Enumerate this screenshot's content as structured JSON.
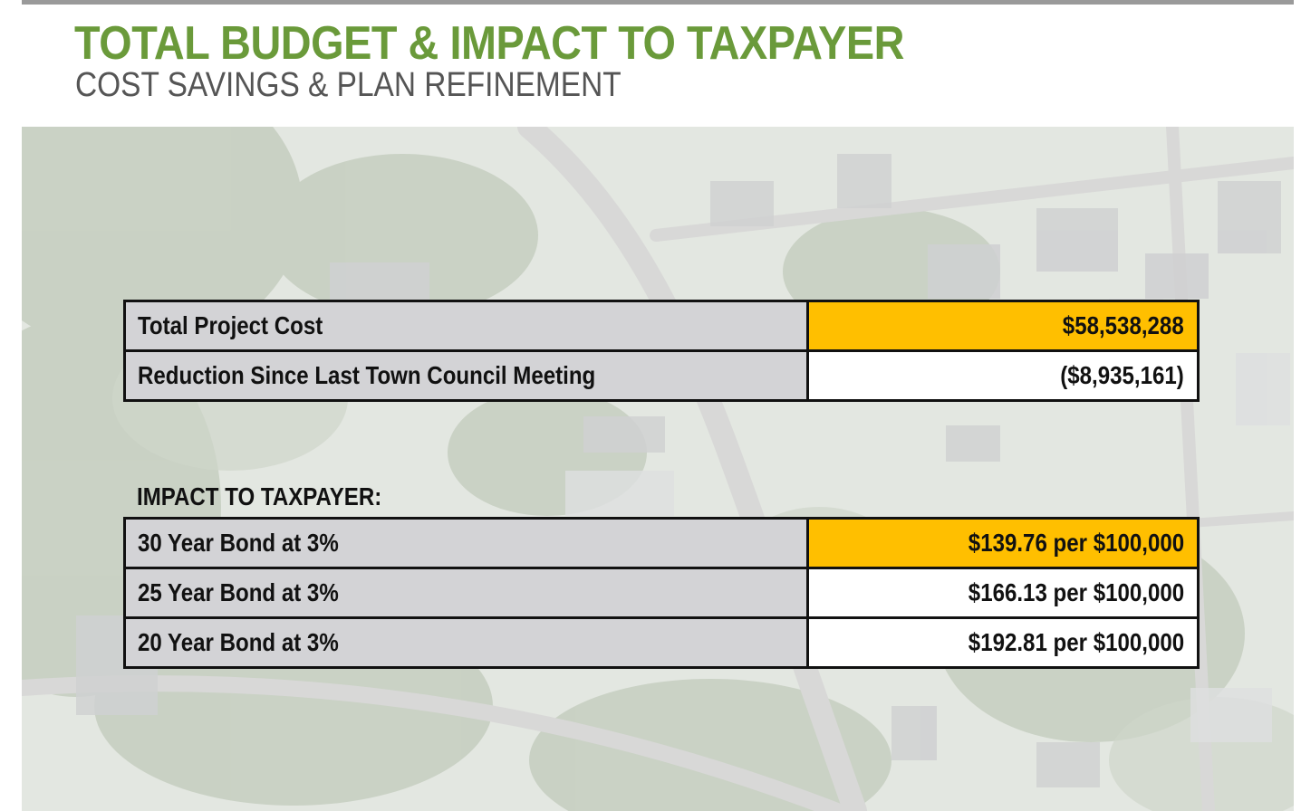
{
  "header": {
    "title": "TOTAL BUDGET & IMPACT TO TAXPAYER",
    "subtitle": "COST SAVINGS & PLAN REFINEMENT"
  },
  "colors": {
    "title_green": "#6a9a3a",
    "subtitle_gray": "#555555",
    "label_cell_gray": "#d3d3d6",
    "highlight_yellow": "#ffbf00",
    "border": "#111111"
  },
  "budget_table": {
    "rows": [
      {
        "label": "Total Project Cost",
        "value": "$58,538,288",
        "highlight": true
      },
      {
        "label": "Reduction Since Last Town Council Meeting",
        "value": "($8,935,161)",
        "highlight": false
      }
    ]
  },
  "impact": {
    "heading": "IMPACT TO TAXPAYER:",
    "rows": [
      {
        "label": "30 Year Bond at 3%",
        "value": "$139.76 per $100,000",
        "highlight": true
      },
      {
        "label": "25 Year Bond at 3%",
        "value": "$166.13 per $100,000",
        "highlight": false
      },
      {
        "label": "20 Year Bond at 3%",
        "value": "$192.81 per $100,000",
        "highlight": false
      }
    ]
  }
}
